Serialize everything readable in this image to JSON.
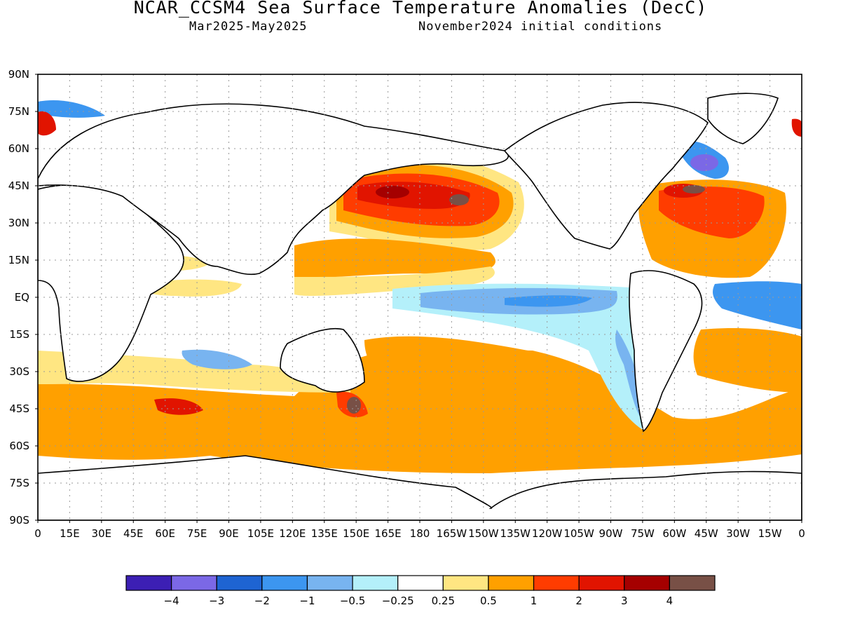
{
  "title": "NCAR_CCSM4 Sea Surface Temperature Anomalies (DecC)",
  "subtitle_period": "Mar2025-May2025",
  "subtitle_init": "November2024 initial conditions",
  "lat_labels": [
    "90N",
    "75N",
    "60N",
    "45N",
    "30N",
    "15N",
    "EQ",
    "15S",
    "30S",
    "45S",
    "60S",
    "75S",
    "90S"
  ],
  "lon_labels": [
    "0",
    "15E",
    "30E",
    "45E",
    "60E",
    "75E",
    "90E",
    "105E",
    "120E",
    "135E",
    "150E",
    "165E",
    "180",
    "165W",
    "150W",
    "135W",
    "120W",
    "105W",
    "90W",
    "75W",
    "60W",
    "45W",
    "30W",
    "15W",
    "0"
  ],
  "colorbar": {
    "colors": [
      "#3c1fb4",
      "#7b68e6",
      "#1e64d2",
      "#3c96f0",
      "#78b4f0",
      "#b4f0fa",
      "#ffffff",
      "#ffe682",
      "#ffa000",
      "#ff3c00",
      "#e11400",
      "#a50000",
      "#785046"
    ],
    "labels": [
      "-4",
      "-3",
      "-2",
      "-1",
      "-0.5",
      "-0.25",
      "0.25",
      "0.5",
      "1",
      "2",
      "3",
      "4"
    ]
  }
}
